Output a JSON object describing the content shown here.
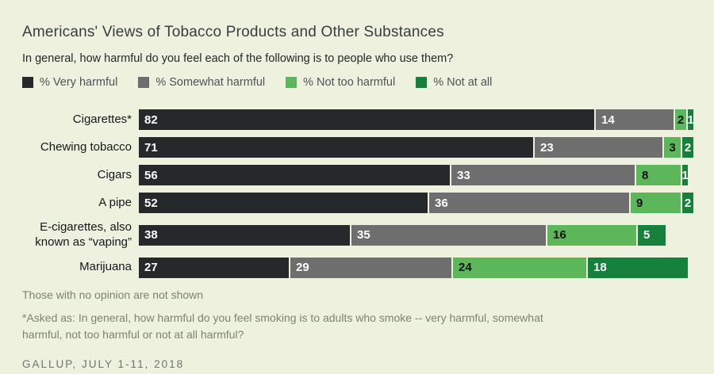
{
  "page": {
    "background_color": "#edf1de"
  },
  "header": {
    "title": "Americans' Views of Tobacco Products and Other Substances",
    "subtitle": "In general, how harmful do you feel each of the following is to people who use them?"
  },
  "legend": [
    {
      "label": "% Very harmful",
      "color": "#25292a"
    },
    {
      "label": "% Somewhat harmful",
      "color": "#6d6e6d"
    },
    {
      "label": "% Not too harmful",
      "color": "#5cb75b"
    },
    {
      "label": "% Not at all",
      "color": "#15813c"
    }
  ],
  "chart_data": {
    "type": "bar",
    "orientation": "horizontal",
    "stacked": true,
    "grid": false,
    "legend_position": "top",
    "xlim": [
      0,
      100
    ],
    "value_unit": "%",
    "categories": [
      "Cigarettes*",
      "Chewing tobacco",
      "Cigars",
      "A pipe",
      "E-cigarettes, also known as “vaping”",
      "Marijuana"
    ],
    "series": [
      {
        "name": "% Very harmful",
        "color": "#25292a",
        "text_color": "#ffffff",
        "values": [
          82,
          71,
          56,
          52,
          38,
          27
        ]
      },
      {
        "name": "% Somewhat harmful",
        "color": "#6d6e6d",
        "text_color": "#ffffff",
        "values": [
          14,
          23,
          33,
          36,
          35,
          29
        ]
      },
      {
        "name": "% Not too harmful",
        "color": "#5cb75b",
        "text_color": "#121212",
        "values": [
          2,
          3,
          8,
          9,
          16,
          24
        ]
      },
      {
        "name": "% Not at all",
        "color": "#15813c",
        "text_color": "#ffffff",
        "values": [
          1,
          2,
          1,
          2,
          5,
          18
        ]
      }
    ]
  },
  "footnotes": {
    "no_opinion": "Those with no opinion are not shown",
    "asked_as": "*Asked as: In general, how harmful do you feel smoking is to adults who smoke -- very harmful, somewhat harmful, not too harmful or not at all harmful?"
  },
  "source": "GALLUP, JULY 1-11, 2018"
}
